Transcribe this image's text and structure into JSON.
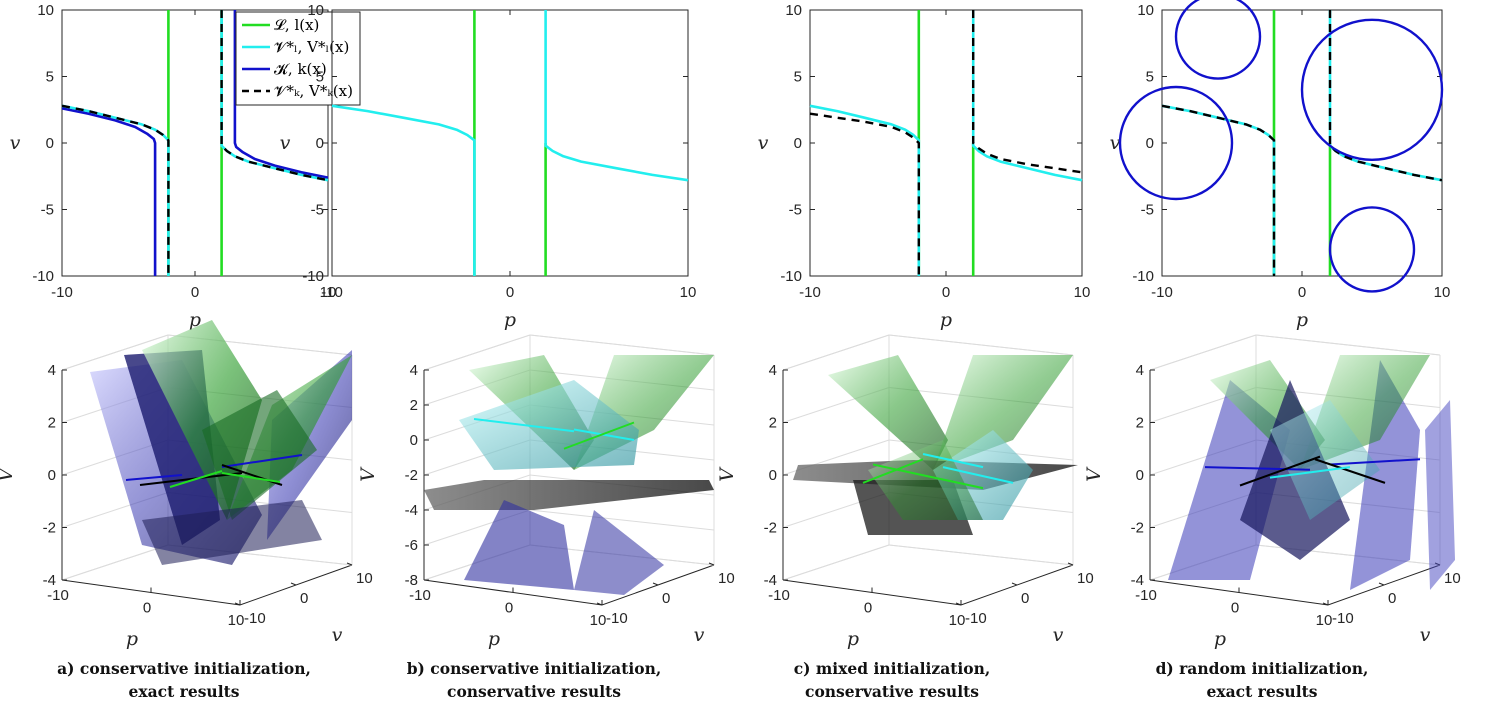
{
  "figure": {
    "legend": {
      "entries": [
        {
          "label": "𝓛, l(x)",
          "color": "#22dd22",
          "style": "solid"
        },
        {
          "label": "𝓥*ₗ, V*ₗ(x)",
          "color": "#22eeee",
          "style": "solid"
        },
        {
          "label": "𝓚, k(x)",
          "color": "#1111cc",
          "style": "solid"
        },
        {
          "label": "𝓥*ₖ, V*ₖ(x)",
          "color": "#000000",
          "style": "dashed"
        }
      ]
    },
    "captions": [
      {
        "line1": "a) conservative initialization,",
        "line2": "exact results"
      },
      {
        "line1": "b) conservative initialization,",
        "line2": "conservative results"
      },
      {
        "line1": "c) mixed initialization,",
        "line2": "conservative results"
      },
      {
        "line1": "d) random initialization,",
        "line2": "exact results"
      }
    ],
    "colors": {
      "green": "#22dd22",
      "cyan": "#22eeee",
      "blue": "#1111cc",
      "black": "#000000",
      "axis": "#262626",
      "grid": "#dcdcdc"
    }
  },
  "chart_data": [
    {
      "type": "line",
      "panel": "a",
      "view": "2d",
      "xlabel": "p",
      "ylabel": "v",
      "xlim": [
        -10,
        10
      ],
      "ylim": [
        -10,
        10
      ],
      "xticks": [
        "-10",
        "0",
        "10"
      ],
      "yticks": [
        "10",
        "5",
        "0",
        "-5",
        "-10"
      ],
      "legend": true,
      "series": [
        {
          "name": "green-left",
          "color": "#22dd22",
          "dash": false,
          "x": [
            2,
            2
          ],
          "y": [
            10,
            -10
          ]
        },
        {
          "name": "green-right",
          "color": "#22dd22",
          "dash": false,
          "x": [
            -2,
            -2
          ],
          "y": [
            10,
            -10
          ]
        },
        {
          "name": "blue-left",
          "color": "#1111cc",
          "dash": false,
          "x": [
            -10,
            -8,
            -6,
            -4.5,
            -3.6,
            -3.1,
            -3,
            -3
          ],
          "y": [
            2.6,
            2.2,
            1.7,
            1.2,
            0.7,
            0.3,
            0,
            -10
          ]
        },
        {
          "name": "blue-right",
          "color": "#1111cc",
          "dash": false,
          "x": [
            3,
            3,
            3.1,
            3.6,
            4.5,
            6,
            8,
            10
          ],
          "y": [
            10,
            0,
            -0.3,
            -0.7,
            -1.2,
            -1.7,
            -2.2,
            -2.6
          ]
        },
        {
          "name": "cyan-left",
          "color": "#22eeee",
          "dash": false,
          "x": [
            -10,
            -8,
            -6,
            -4,
            -3,
            -2.4,
            -2,
            -2
          ],
          "y": [
            2.8,
            2.4,
            1.9,
            1.4,
            1.0,
            0.6,
            0.2,
            -10
          ]
        },
        {
          "name": "cyan-right",
          "color": "#22eeee",
          "dash": false,
          "x": [
            2,
            2,
            2.4,
            3,
            4,
            6,
            8,
            10
          ],
          "y": [
            10,
            -0.2,
            -0.6,
            -1.0,
            -1.4,
            -1.9,
            -2.4,
            -2.8
          ]
        },
        {
          "name": "black-left",
          "color": "#000000",
          "dash": true,
          "x": [
            -10,
            -8,
            -6,
            -4,
            -3,
            -2.4,
            -2,
            -2
          ],
          "y": [
            2.8,
            2.4,
            1.9,
            1.4,
            1.0,
            0.6,
            0.2,
            -10
          ]
        },
        {
          "name": "black-right",
          "color": "#000000",
          "dash": true,
          "x": [
            2,
            2,
            2.4,
            3,
            4,
            6,
            8,
            10
          ],
          "y": [
            10,
            -0.2,
            -0.6,
            -1.0,
            -1.4,
            -1.9,
            -2.4,
            -2.8
          ]
        }
      ]
    },
    {
      "type": "line",
      "panel": "b",
      "view": "2d",
      "xlabel": "p",
      "ylabel": "v",
      "xlim": [
        -10,
        10
      ],
      "ylim": [
        -10,
        10
      ],
      "xticks": [
        "-10",
        "0",
        "10"
      ],
      "yticks": [
        "10",
        "5",
        "0",
        "-5",
        "-10"
      ],
      "series": [
        {
          "name": "green-left",
          "color": "#22dd22",
          "dash": false,
          "x": [
            -2,
            -2
          ],
          "y": [
            10,
            -10
          ]
        },
        {
          "name": "green-right",
          "color": "#22dd22",
          "dash": false,
          "x": [
            2,
            2
          ],
          "y": [
            0,
            -10
          ]
        },
        {
          "name": "cyan-left",
          "color": "#22eeee",
          "dash": false,
          "x": [
            -10,
            -8,
            -6,
            -4,
            -3,
            -2.4,
            -2,
            -2
          ],
          "y": [
            2.8,
            2.4,
            1.9,
            1.4,
            1.0,
            0.6,
            0.2,
            -10
          ]
        },
        {
          "name": "cyan-right",
          "color": "#22eeee",
          "dash": false,
          "x": [
            2,
            2,
            2.4,
            3,
            4,
            6,
            8,
            10
          ],
          "y": [
            10,
            -0.2,
            -0.6,
            -1.0,
            -1.4,
            -1.9,
            -2.4,
            -2.8
          ]
        }
      ]
    },
    {
      "type": "line",
      "panel": "c",
      "view": "2d",
      "xlabel": "p",
      "ylabel": "v",
      "xlim": [
        -10,
        10
      ],
      "ylim": [
        -10,
        10
      ],
      "xticks": [
        "-10",
        "0",
        "10"
      ],
      "yticks": [
        "10",
        "5",
        "0",
        "-5",
        "-10"
      ],
      "series": [
        {
          "name": "green-left",
          "color": "#22dd22",
          "dash": false,
          "x": [
            -2,
            -2
          ],
          "y": [
            10,
            -10
          ]
        },
        {
          "name": "green-right",
          "color": "#22dd22",
          "dash": false,
          "x": [
            2,
            2
          ],
          "y": [
            0,
            -10
          ]
        },
        {
          "name": "cyan-left",
          "color": "#22eeee",
          "dash": false,
          "x": [
            -10,
            -8,
            -6,
            -4,
            -3,
            -2.4,
            -2,
            -2
          ],
          "y": [
            2.8,
            2.4,
            1.9,
            1.4,
            1.0,
            0.6,
            0.2,
            -10
          ]
        },
        {
          "name": "cyan-right",
          "color": "#22eeee",
          "dash": false,
          "x": [
            2,
            2,
            2.4,
            3,
            4,
            6,
            8,
            10
          ],
          "y": [
            10,
            -0.2,
            -0.6,
            -1.0,
            -1.4,
            -1.9,
            -2.4,
            -2.8
          ]
        },
        {
          "name": "black-left",
          "color": "#000000",
          "dash": true,
          "x": [
            -10,
            -8,
            -6,
            -4,
            -3,
            -2.4,
            -2,
            -2
          ],
          "y": [
            2.2,
            1.9,
            1.6,
            1.2,
            0.8,
            0.4,
            0,
            -10
          ]
        },
        {
          "name": "black-right",
          "color": "#000000",
          "dash": true,
          "x": [
            2,
            2,
            2.4,
            3,
            4,
            6,
            8,
            10
          ],
          "y": [
            10,
            0,
            -0.4,
            -0.8,
            -1.2,
            -1.6,
            -1.9,
            -2.2
          ]
        }
      ]
    },
    {
      "type": "line",
      "panel": "d",
      "view": "2d",
      "xlabel": "p",
      "ylabel": "v",
      "xlim": [
        -10,
        10
      ],
      "ylim": [
        -10,
        10
      ],
      "xticks": [
        "-10",
        "0",
        "10"
      ],
      "yticks": [
        "10",
        "5",
        "0",
        "-5",
        "-10"
      ],
      "series": [
        {
          "name": "green-left",
          "color": "#22dd22",
          "dash": false,
          "x": [
            -2,
            -2
          ],
          "y": [
            10,
            -10
          ]
        },
        {
          "name": "green-right",
          "color": "#22dd22",
          "dash": false,
          "x": [
            2,
            2
          ],
          "y": [
            0,
            -10
          ]
        },
        {
          "name": "cyan-left",
          "color": "#22eeee",
          "dash": false,
          "x": [
            -10,
            -8,
            -6,
            -4,
            -3,
            -2.4,
            -2,
            -2
          ],
          "y": [
            2.8,
            2.4,
            1.9,
            1.4,
            1.0,
            0.6,
            0.2,
            -10
          ]
        },
        {
          "name": "cyan-right",
          "color": "#22eeee",
          "dash": false,
          "x": [
            2,
            2,
            2.4,
            3,
            4,
            6,
            8,
            10
          ],
          "y": [
            10,
            -0.2,
            -0.6,
            -1.0,
            -1.4,
            -1.9,
            -2.4,
            -2.8
          ]
        },
        {
          "name": "black-left",
          "color": "#000000",
          "dash": true,
          "x": [
            -10,
            -8,
            -6,
            -4,
            -3,
            -2.4,
            -2,
            -2
          ],
          "y": [
            2.8,
            2.4,
            1.9,
            1.4,
            1.0,
            0.6,
            0.2,
            -10
          ]
        },
        {
          "name": "black-right",
          "color": "#000000",
          "dash": true,
          "x": [
            2,
            2,
            2.4,
            3,
            4,
            6,
            8,
            10
          ],
          "y": [
            10,
            -0.2,
            -0.6,
            -1.0,
            -1.4,
            -1.9,
            -2.4,
            -2.8
          ]
        }
      ],
      "circles": [
        {
          "name": "blue-circle-top-left",
          "color": "#1111cc",
          "cx": -6,
          "cy": 8,
          "r": 3,
          "open": true
        },
        {
          "name": "blue-circle-mid-left",
          "color": "#1111cc",
          "cx": -9,
          "cy": 0,
          "r": 4,
          "open": true
        },
        {
          "name": "blue-circle-right",
          "color": "#1111cc",
          "cx": 5,
          "cy": 4,
          "r": 5,
          "open": true
        },
        {
          "name": "blue-circle-bottom-right",
          "color": "#1111cc",
          "cx": 5,
          "cy": -8,
          "r": 3,
          "open": true
        }
      ]
    },
    {
      "type": "surface3d",
      "panel": "a",
      "view": "3d",
      "xlabel": "p",
      "ylabel": "v",
      "zlabel": "V",
      "xlim": [
        -10,
        10
      ],
      "ylim": [
        -10,
        10
      ],
      "zlim": [
        -4,
        4
      ],
      "xticks": [
        "-10",
        "0",
        "10"
      ],
      "yticks": [
        "-10",
        "0",
        "10"
      ],
      "zticks": [
        "4",
        "2",
        "0",
        "-2",
        "-4"
      ]
    },
    {
      "type": "surface3d",
      "panel": "b",
      "view": "3d",
      "xlabel": "p",
      "ylabel": "v",
      "zlabel": "V",
      "xlim": [
        -10,
        10
      ],
      "ylim": [
        -10,
        10
      ],
      "zlim": [
        -8,
        4
      ],
      "xticks": [
        "-10",
        "0",
        "10"
      ],
      "yticks": [
        "-10",
        "0",
        "10"
      ],
      "zticks": [
        "4",
        "2",
        "0",
        "-2",
        "-4",
        "-6",
        "-8"
      ]
    },
    {
      "type": "surface3d",
      "panel": "c",
      "view": "3d",
      "xlabel": "p",
      "ylabel": "v",
      "zlabel": "V",
      "xlim": [
        -10,
        10
      ],
      "ylim": [
        -10,
        10
      ],
      "zlim": [
        -4,
        4
      ],
      "xticks": [
        "-10",
        "0",
        "10"
      ],
      "yticks": [
        "-10",
        "0",
        "10"
      ],
      "zticks": [
        "4",
        "2",
        "0",
        "-2",
        "-4"
      ]
    },
    {
      "type": "surface3d",
      "panel": "d",
      "view": "3d",
      "xlabel": "p",
      "ylabel": "v",
      "zlabel": "V",
      "xlim": [
        -10,
        10
      ],
      "ylim": [
        -10,
        10
      ],
      "zlim": [
        -4,
        4
      ],
      "xticks": [
        "-10",
        "0",
        "10"
      ],
      "yticks": [
        "-10",
        "0",
        "10"
      ],
      "zticks": [
        "4",
        "2",
        "0",
        "-2",
        "-4"
      ]
    }
  ]
}
